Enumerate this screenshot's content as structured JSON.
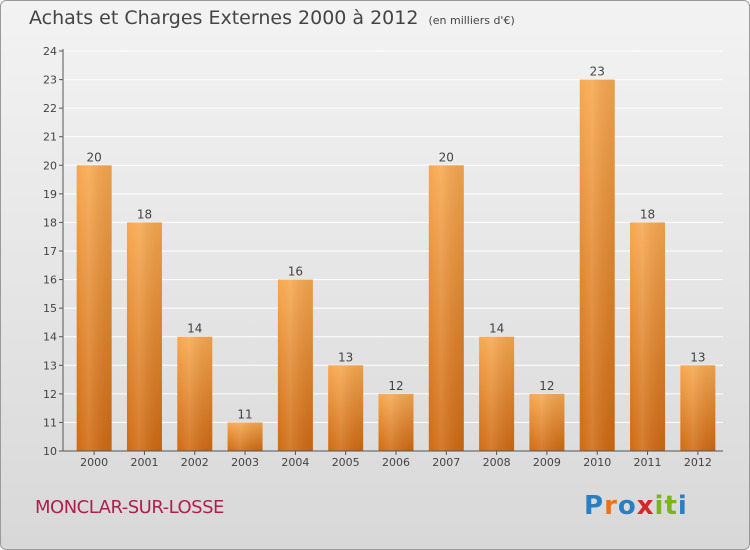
{
  "header": {
    "title": "Achats et Charges Externes 2000 à 2012",
    "subtitle": "(en milliers d'€)"
  },
  "footer": {
    "place": "MONCLAR-SUR-LOSSE",
    "brand": [
      "P",
      "r",
      "o",
      "x",
      "i",
      "t",
      "i"
    ],
    "brand_colors": [
      "#2a7fc4",
      "#e8731a",
      "#2a7fc4",
      "#d6252b",
      "#7ab51d",
      "#7ab51d",
      "#2a7fc4"
    ]
  },
  "colors": {
    "bar_top": "#f7a84f",
    "bar_bottom": "#cf6a12",
    "axis": "#555555",
    "grid": "#ffffff",
    "title": "#444444",
    "place": "#b01e4f"
  },
  "chart_data": {
    "type": "bar",
    "title": "Achats et Charges Externes 2000 à 2012",
    "subtitle": "(en milliers d'€)",
    "categories": [
      "2000",
      "2001",
      "2002",
      "2003",
      "2004",
      "2005",
      "2006",
      "2007",
      "2008",
      "2009",
      "2010",
      "2011",
      "2012"
    ],
    "values": [
      20,
      18,
      14,
      11,
      16,
      13,
      12,
      20,
      14,
      12,
      23,
      18,
      13
    ],
    "ylim": [
      10,
      24
    ],
    "yticks": [
      10,
      11,
      12,
      13,
      14,
      15,
      16,
      17,
      18,
      19,
      20,
      21,
      22,
      23,
      24
    ],
    "xlabel": "",
    "ylabel": "",
    "grid": true,
    "data_labels": true
  }
}
